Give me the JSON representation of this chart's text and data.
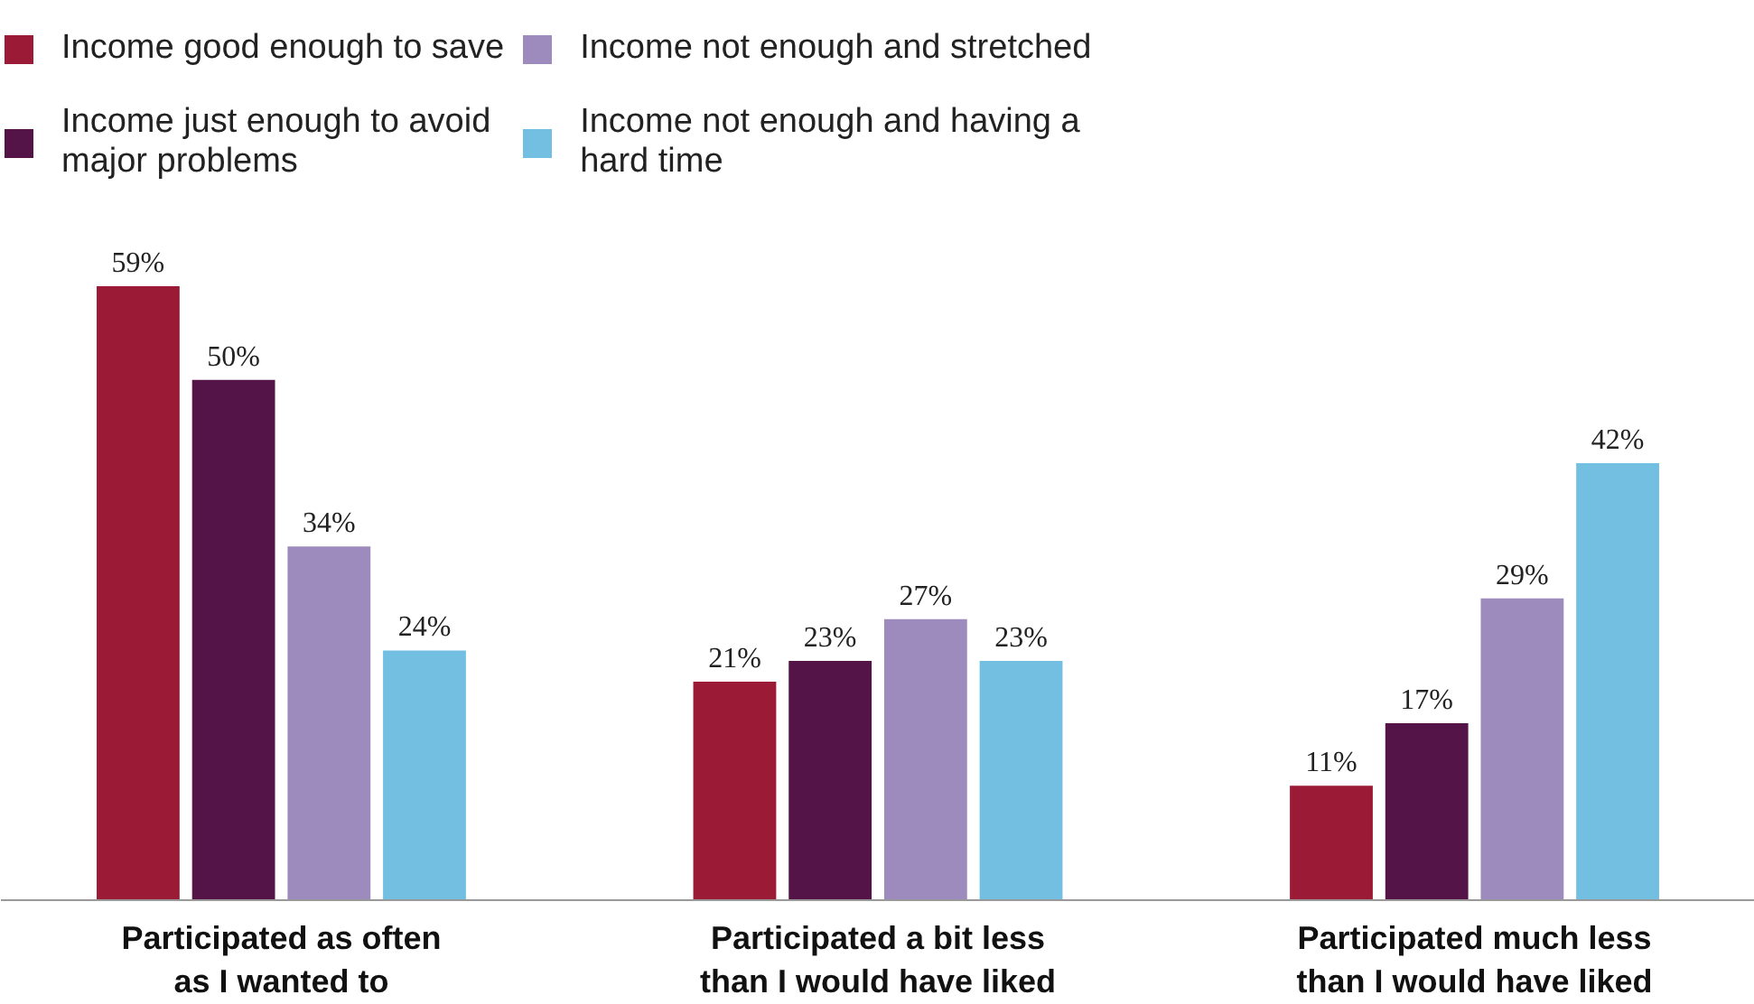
{
  "chart_data": {
    "type": "bar",
    "categories": [
      "Participated as often as I wanted to",
      "Participated a bit less than I would have liked",
      "Participated much less than I would have liked"
    ],
    "series": [
      {
        "name": "Income good enough to save",
        "color": "#9b1b36",
        "values": [
          59,
          21,
          11
        ],
        "value_labels": [
          "59%",
          "21%",
          "11%"
        ]
      },
      {
        "name": "Income just enough to avoid major problems",
        "color": "#541447",
        "values": [
          50,
          23,
          17
        ],
        "value_labels": [
          "50%",
          "23%",
          "17%"
        ]
      },
      {
        "name": "Income not enough and stretched",
        "color": "#9e8bbd",
        "values": [
          34,
          27,
          29
        ],
        "value_labels": [
          "34%",
          "27%",
          "29%"
        ]
      },
      {
        "name": "Income not enough and having a hard time",
        "color": "#73bfe2",
        "values": [
          24,
          23,
          42
        ],
        "value_labels": [
          "24%",
          "23%",
          "42%"
        ]
      }
    ],
    "legend": "top"
  }
}
